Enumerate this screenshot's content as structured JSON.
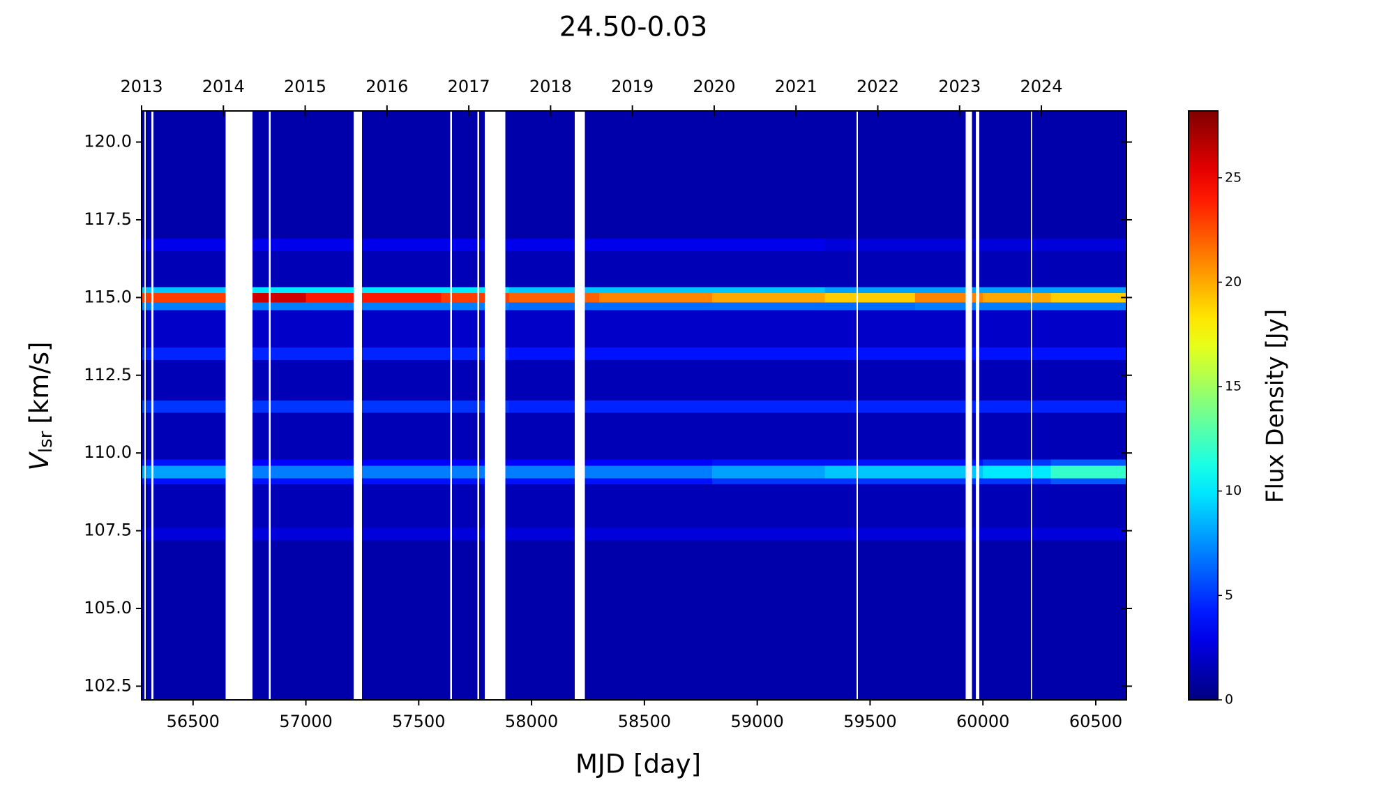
{
  "chart_data": {
    "type": "heatmap",
    "title": "24.50-0.03",
    "xlabel": "MJD [day]",
    "ylabel_parts": [
      "V",
      "lsr",
      "[km/s]"
    ],
    "colorbar_label": "Flux Density [Jy]",
    "colormap": "jet",
    "xlim": [
      56272,
      60636
    ],
    "xticks": [
      56500,
      57000,
      57500,
      58000,
      58500,
      59000,
      59500,
      60000,
      60500
    ],
    "x2lim": [
      2013,
      2025.04
    ],
    "x2ticks": [
      2013,
      2014,
      2015,
      2016,
      2017,
      2018,
      2019,
      2020,
      2021,
      2022,
      2023,
      2024
    ],
    "ylim": [
      102.06,
      121.0
    ],
    "yticks": [
      {
        "value": 102.5,
        "label": "102.5"
      },
      {
        "value": 105,
        "label": "105.0"
      },
      {
        "value": 107.5,
        "label": "107.5"
      },
      {
        "value": 110,
        "label": "110.0"
      },
      {
        "value": 112.5,
        "label": "112.5"
      },
      {
        "value": 115,
        "label": "115.0"
      },
      {
        "value": 117.5,
        "label": "117.5"
      },
      {
        "value": 120,
        "label": "120.0"
      }
    ],
    "clim": [
      0,
      28.2
    ],
    "cticks": [
      0,
      5,
      10,
      15,
      20,
      25
    ],
    "x_edges": [
      56272,
      56700,
      57000,
      57300,
      57600,
      57900,
      58300,
      58800,
      59300,
      59700,
      60000,
      60300,
      60636
    ],
    "y_edges": [
      102.06,
      107.2,
      107.6,
      109.0,
      109.2,
      109.6,
      109.8,
      111.3,
      111.7,
      113.0,
      113.4,
      114.6,
      114.85,
      115.15,
      115.35,
      116.5,
      116.9,
      121.0
    ],
    "z": [
      [
        1.2,
        1.2,
        1.2,
        1.2,
        1.2,
        1.2,
        1.2,
        1.2,
        1.2,
        1.2,
        1.2,
        1.2
      ],
      [
        2.5,
        2.5,
        2.5,
        2.5,
        2.5,
        2.5,
        2.5,
        2.5,
        2.5,
        2.5,
        2.5,
        2.5
      ],
      [
        1.5,
        1.5,
        1.5,
        1.5,
        1.5,
        1.5,
        1.5,
        1.5,
        1.5,
        1.5,
        1.5,
        1.5
      ],
      [
        4,
        4,
        4,
        4,
        4,
        4,
        4,
        5,
        5,
        5,
        5,
        6
      ],
      [
        8,
        7,
        7,
        7,
        7,
        7,
        7,
        8,
        9,
        9,
        10,
        12
      ],
      [
        4,
        3.5,
        3.5,
        3.5,
        3.5,
        3.5,
        3.5,
        4,
        4,
        4,
        5,
        6
      ],
      [
        1.5,
        1.5,
        1.5,
        1.5,
        1.5,
        1.5,
        1.5,
        1.5,
        1.5,
        1.5,
        1.5,
        1.5
      ],
      [
        5,
        5,
        5,
        5,
        5,
        4.5,
        4.5,
        4.5,
        4.5,
        4.5,
        4.5,
        4.5
      ],
      [
        1.5,
        1.5,
        1.5,
        1.5,
        1.5,
        1.5,
        1.5,
        1.5,
        1.5,
        1.5,
        1.5,
        1.5
      ],
      [
        4.5,
        4.5,
        4.5,
        4.5,
        4.5,
        4,
        4,
        4,
        4,
        4,
        4,
        4
      ],
      [
        2,
        2,
        2,
        2,
        2,
        2,
        2,
        2,
        2,
        2,
        2,
        2
      ],
      [
        7,
        7,
        7,
        7,
        7,
        6.5,
        6.5,
        6.5,
        6.5,
        7,
        7,
        7
      ],
      [
        23,
        26,
        24,
        24,
        23,
        22,
        21,
        20,
        19,
        21,
        20,
        19
      ],
      [
        9,
        10,
        10,
        10,
        10,
        9,
        9,
        9,
        8,
        8,
        8,
        8
      ],
      [
        1.5,
        1.5,
        1.5,
        1.5,
        1.5,
        1.5,
        1.5,
        1.5,
        1.5,
        1.5,
        1.5,
        1.5
      ],
      [
        3,
        3,
        3,
        3,
        3,
        3,
        3,
        3,
        2.5,
        2.5,
        2.5,
        2.5
      ],
      [
        1.2,
        1.2,
        1.2,
        1.2,
        1.2,
        1.2,
        1.2,
        1.2,
        1.2,
        1.2,
        1.2,
        1.2
      ]
    ],
    "gaps": [
      [
        56284,
        56290
      ],
      [
        56316,
        56324
      ],
      [
        56644,
        56764
      ],
      [
        56836,
        56844
      ],
      [
        57212,
        57248
      ],
      [
        57640,
        57648
      ],
      [
        57760,
        57768
      ],
      [
        57792,
        57884
      ],
      [
        58192,
        58236
      ],
      [
        59440,
        59446
      ],
      [
        59924,
        59952
      ],
      [
        59968,
        59984
      ],
      [
        60212,
        60216
      ]
    ]
  }
}
